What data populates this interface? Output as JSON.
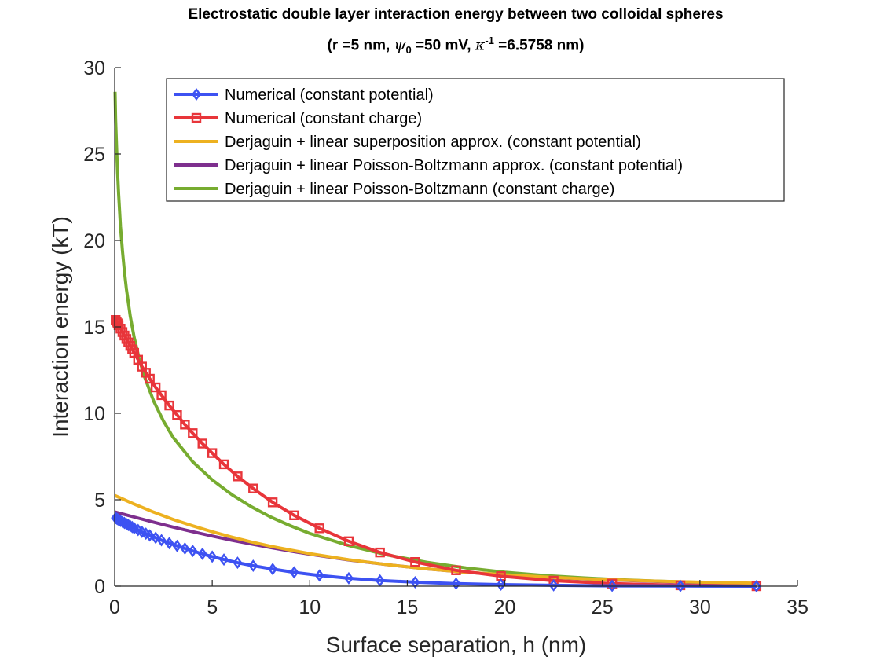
{
  "chart_data": {
    "type": "line",
    "title_line1": "Electrostatic double layer interaction energy between two colloidal spheres",
    "title_params": {
      "r": "(r =5 nm, ",
      "psi_symbol": "ψ",
      "psi_sub": "0",
      "psi_val": " =50 mV, ",
      "kappa_symbol": "κ",
      "kappa_sup": "-1",
      "kappa_val": " =6.5758 nm)"
    },
    "xlabel": "Surface separation, h (nm)",
    "ylabel": "Interaction energy (kT)",
    "xlim": [
      0,
      35
    ],
    "ylim": [
      0,
      30
    ],
    "xticks": [
      "0",
      "5",
      "10",
      "15",
      "20",
      "25",
      "30",
      "35"
    ],
    "yticks": [
      "0",
      "5",
      "10",
      "15",
      "20",
      "25",
      "30"
    ],
    "grid": false,
    "legend_position": "top-right",
    "series": [
      {
        "name": "Numerical (constant potential)",
        "color": "#3d52f2",
        "marker": "diamond",
        "x": [
          0.05,
          0.1,
          0.15,
          0.2,
          0.3,
          0.4,
          0.5,
          0.6,
          0.7,
          0.8,
          0.9,
          1.0,
          1.2,
          1.4,
          1.6,
          1.8,
          2.1,
          2.4,
          2.8,
          3.2,
          3.6,
          4.0,
          4.5,
          5.0,
          5.6,
          6.3,
          7.1,
          8.1,
          9.2,
          10.5,
          12.0,
          13.6,
          15.4,
          17.5,
          19.8,
          22.5,
          25.5,
          29.0,
          32.9
        ],
        "y": [
          3.95,
          3.91,
          3.88,
          3.84,
          3.78,
          3.72,
          3.66,
          3.6,
          3.54,
          3.48,
          3.42,
          3.36,
          3.25,
          3.14,
          3.04,
          2.94,
          2.8,
          2.66,
          2.49,
          2.33,
          2.18,
          2.04,
          1.87,
          1.71,
          1.54,
          1.36,
          1.18,
          0.99,
          0.8,
          0.62,
          0.46,
          0.33,
          0.23,
          0.15,
          0.09,
          0.05,
          0.02,
          0.01,
          0.0
        ]
      },
      {
        "name": "Numerical (constant charge)",
        "color": "#e8353a",
        "marker": "square",
        "x": [
          0.05,
          0.1,
          0.15,
          0.2,
          0.3,
          0.4,
          0.5,
          0.6,
          0.7,
          0.8,
          0.9,
          1.0,
          1.2,
          1.4,
          1.6,
          1.8,
          2.1,
          2.4,
          2.8,
          3.2,
          3.6,
          4.0,
          4.5,
          5.0,
          5.6,
          6.3,
          7.1,
          8.1,
          9.2,
          10.5,
          12.0,
          13.6,
          15.4,
          17.5,
          19.8,
          22.5,
          25.5,
          29.0,
          32.9
        ],
        "y": [
          15.4,
          15.3,
          15.2,
          15.1,
          14.9,
          14.7,
          14.5,
          14.3,
          14.1,
          13.9,
          13.7,
          13.5,
          13.1,
          12.7,
          12.35,
          12.0,
          11.5,
          11.05,
          10.45,
          9.9,
          9.35,
          8.85,
          8.25,
          7.7,
          7.05,
          6.35,
          5.65,
          4.85,
          4.1,
          3.35,
          2.6,
          1.95,
          1.4,
          0.92,
          0.58,
          0.32,
          0.15,
          0.05,
          0.0
        ]
      },
      {
        "name": "Derjaguin + linear superposition approx. (constant potential)",
        "color": "#edb120",
        "marker": "none",
        "x": [
          0,
          0.5,
          1,
          2,
          3,
          4,
          5,
          6,
          7,
          8,
          9,
          10,
          12,
          14,
          16,
          18,
          20,
          22,
          24,
          26,
          28,
          30,
          32.9
        ],
        "y": [
          5.25,
          5.0,
          4.75,
          4.28,
          3.86,
          3.49,
          3.15,
          2.84,
          2.56,
          2.31,
          2.09,
          1.88,
          1.53,
          1.24,
          1.0,
          0.81,
          0.66,
          0.53,
          0.43,
          0.35,
          0.28,
          0.23,
          0.17
        ]
      },
      {
        "name": "Derjaguin + linear Poisson-Boltzmann approx. (constant potential)",
        "color": "#7e2f8e",
        "marker": "none",
        "x": [
          0,
          0.5,
          1,
          2,
          3,
          4,
          5,
          6,
          7,
          8,
          9,
          10,
          12,
          14,
          16,
          18,
          20,
          22,
          24,
          26,
          28,
          30,
          32.9
        ],
        "y": [
          4.3,
          4.15,
          4.0,
          3.7,
          3.42,
          3.15,
          2.9,
          2.66,
          2.44,
          2.23,
          2.03,
          1.85,
          1.52,
          1.24,
          1.0,
          0.81,
          0.65,
          0.52,
          0.42,
          0.34,
          0.27,
          0.21,
          0.15
        ]
      },
      {
        "name": "Derjaguin + linear Poisson-Boltzmann (constant charge)",
        "color": "#77ac30",
        "marker": "none",
        "x": [
          0.02,
          0.05,
          0.1,
          0.15,
          0.2,
          0.3,
          0.4,
          0.5,
          0.6,
          0.8,
          1.0,
          1.25,
          1.5,
          2.0,
          2.5,
          3.0,
          4.0,
          5.0,
          6.0,
          7.0,
          8.0,
          9.0,
          10.0,
          12.0,
          14.0,
          16.0,
          18.0,
          20.0,
          22.0,
          24.0,
          26.0,
          28.0,
          30.0,
          32.9
        ],
        "y": [
          28.6,
          27.0,
          25.3,
          23.9,
          22.7,
          20.8,
          19.4,
          18.2,
          17.2,
          15.6,
          14.4,
          13.2,
          12.2,
          10.7,
          9.55,
          8.6,
          7.2,
          6.15,
          5.3,
          4.6,
          4.0,
          3.5,
          3.05,
          2.35,
          1.8,
          1.38,
          1.06,
          0.81,
          0.62,
          0.48,
          0.37,
          0.28,
          0.22,
          0.15
        ]
      }
    ]
  }
}
